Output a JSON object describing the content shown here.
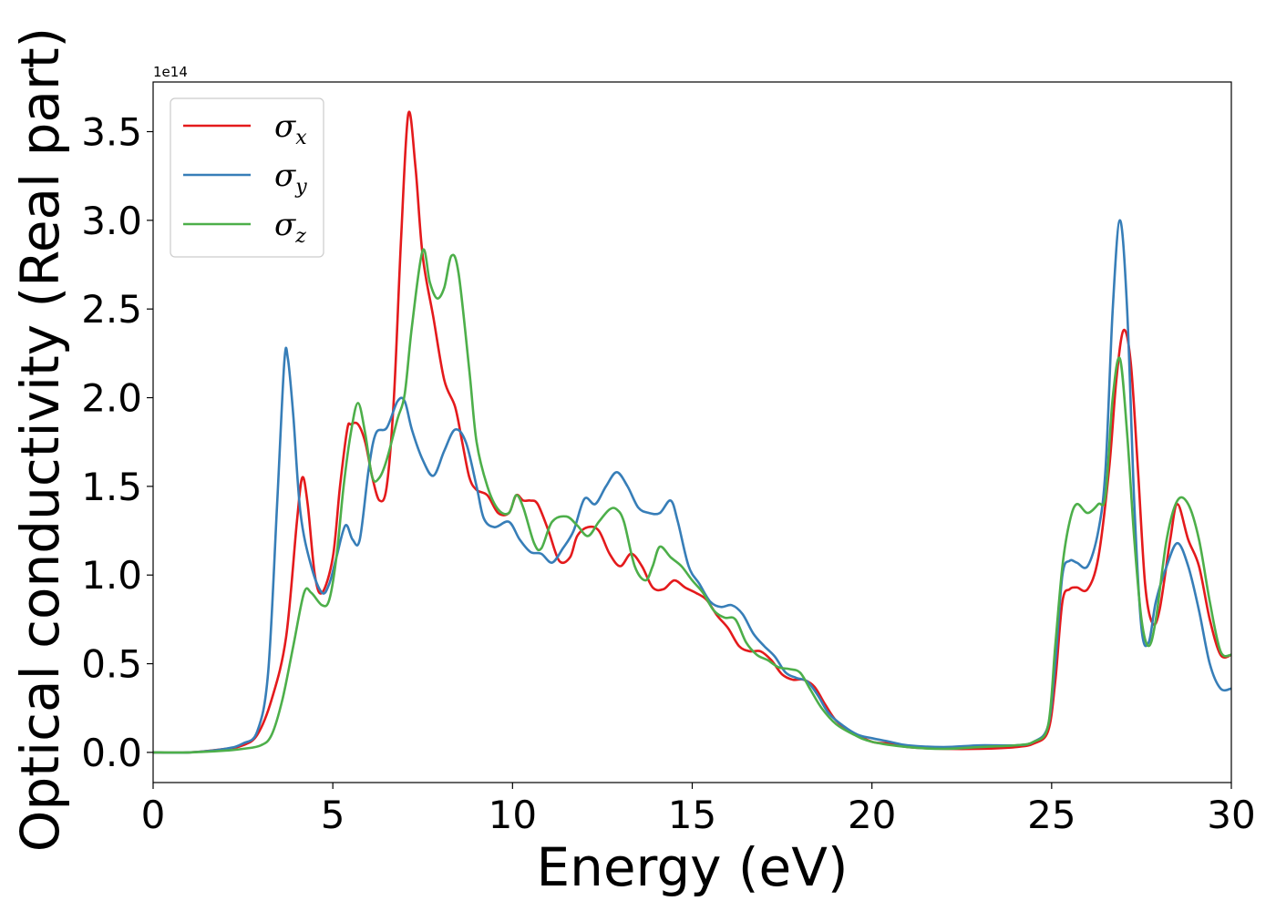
{
  "chart_data": {
    "type": "line",
    "xlabel": "Energy (eV)",
    "ylabel": "Optical conductivity (Real part)",
    "y_offset_label": "1e14",
    "xlim": [
      0,
      30
    ],
    "ylim": [
      -0.17,
      3.78
    ],
    "xticks": [
      0,
      5,
      10,
      15,
      20,
      25,
      30
    ],
    "xtick_labels": [
      "0",
      "5",
      "10",
      "15",
      "20",
      "25",
      "30"
    ],
    "yticks": [
      0.0,
      0.5,
      1.0,
      1.5,
      2.0,
      2.5,
      3.0,
      3.5
    ],
    "ytick_labels": [
      "0.0",
      "0.5",
      "1.0",
      "1.5",
      "2.0",
      "2.5",
      "3.0",
      "3.5"
    ],
    "grid": false,
    "legend_position": "top-left",
    "series": [
      {
        "name": "σx",
        "symbol": "σ",
        "subscript": "x",
        "color": "#e41a1c",
        "points": [
          [
            0,
            0
          ],
          [
            1,
            0
          ],
          [
            2,
            0.02
          ],
          [
            2.5,
            0.04
          ],
          [
            2.9,
            0.1
          ],
          [
            3.3,
            0.3
          ],
          [
            3.7,
            0.65
          ],
          [
            4.0,
            1.3
          ],
          [
            4.15,
            1.55
          ],
          [
            4.3,
            1.4
          ],
          [
            4.5,
            1.0
          ],
          [
            4.7,
            0.9
          ],
          [
            5.0,
            1.1
          ],
          [
            5.2,
            1.5
          ],
          [
            5.4,
            1.82
          ],
          [
            5.5,
            1.85
          ],
          [
            5.7,
            1.85
          ],
          [
            5.9,
            1.75
          ],
          [
            6.1,
            1.55
          ],
          [
            6.3,
            1.42
          ],
          [
            6.5,
            1.5
          ],
          [
            6.7,
            2.0
          ],
          [
            6.9,
            2.9
          ],
          [
            7.1,
            3.6
          ],
          [
            7.3,
            3.3
          ],
          [
            7.5,
            2.8
          ],
          [
            7.8,
            2.45
          ],
          [
            8.1,
            2.1
          ],
          [
            8.4,
            1.95
          ],
          [
            8.6,
            1.75
          ],
          [
            8.8,
            1.55
          ],
          [
            9.0,
            1.48
          ],
          [
            9.3,
            1.45
          ],
          [
            9.6,
            1.35
          ],
          [
            9.9,
            1.35
          ],
          [
            10.1,
            1.45
          ],
          [
            10.3,
            1.42
          ],
          [
            10.5,
            1.42
          ],
          [
            10.7,
            1.4
          ],
          [
            11.0,
            1.25
          ],
          [
            11.3,
            1.08
          ],
          [
            11.6,
            1.1
          ],
          [
            11.8,
            1.22
          ],
          [
            12.1,
            1.27
          ],
          [
            12.4,
            1.25
          ],
          [
            12.7,
            1.12
          ],
          [
            13.0,
            1.05
          ],
          [
            13.3,
            1.12
          ],
          [
            13.6,
            1.05
          ],
          [
            13.9,
            0.93
          ],
          [
            14.2,
            0.92
          ],
          [
            14.5,
            0.97
          ],
          [
            14.8,
            0.93
          ],
          [
            15.1,
            0.9
          ],
          [
            15.4,
            0.86
          ],
          [
            15.7,
            0.77
          ],
          [
            16.0,
            0.7
          ],
          [
            16.3,
            0.6
          ],
          [
            16.6,
            0.57
          ],
          [
            16.9,
            0.57
          ],
          [
            17.2,
            0.52
          ],
          [
            17.5,
            0.44
          ],
          [
            17.8,
            0.41
          ],
          [
            18.1,
            0.41
          ],
          [
            18.4,
            0.37
          ],
          [
            18.7,
            0.27
          ],
          [
            19.0,
            0.18
          ],
          [
            19.4,
            0.12
          ],
          [
            20.0,
            0.06
          ],
          [
            20.5,
            0.05
          ],
          [
            21.0,
            0.03
          ],
          [
            22.0,
            0.02
          ],
          [
            23.0,
            0.02
          ],
          [
            24.0,
            0.03
          ],
          [
            24.5,
            0.05
          ],
          [
            24.9,
            0.12
          ],
          [
            25.1,
            0.4
          ],
          [
            25.3,
            0.85
          ],
          [
            25.5,
            0.92
          ],
          [
            25.7,
            0.93
          ],
          [
            26.0,
            0.92
          ],
          [
            26.3,
            1.1
          ],
          [
            26.6,
            1.6
          ],
          [
            26.8,
            2.1
          ],
          [
            27.0,
            2.38
          ],
          [
            27.2,
            2.2
          ],
          [
            27.4,
            1.6
          ],
          [
            27.6,
            0.95
          ],
          [
            27.8,
            0.73
          ],
          [
            28.0,
            0.8
          ],
          [
            28.3,
            1.2
          ],
          [
            28.5,
            1.4
          ],
          [
            28.8,
            1.2
          ],
          [
            29.1,
            1.05
          ],
          [
            29.4,
            0.75
          ],
          [
            29.7,
            0.55
          ],
          [
            30.0,
            0.55
          ]
        ]
      },
      {
        "name": "σy",
        "symbol": "σ",
        "subscript": "y",
        "color": "#377eb8",
        "points": [
          [
            0,
            0
          ],
          [
            1,
            0
          ],
          [
            2,
            0.02
          ],
          [
            2.5,
            0.05
          ],
          [
            2.9,
            0.12
          ],
          [
            3.2,
            0.45
          ],
          [
            3.45,
            1.4
          ],
          [
            3.65,
            2.2
          ],
          [
            3.75,
            2.22
          ],
          [
            3.9,
            1.9
          ],
          [
            4.1,
            1.35
          ],
          [
            4.4,
            1.05
          ],
          [
            4.7,
            0.9
          ],
          [
            4.9,
            0.95
          ],
          [
            5.1,
            1.1
          ],
          [
            5.35,
            1.28
          ],
          [
            5.55,
            1.2
          ],
          [
            5.75,
            1.2
          ],
          [
            6.0,
            1.6
          ],
          [
            6.2,
            1.8
          ],
          [
            6.5,
            1.83
          ],
          [
            6.8,
            1.98
          ],
          [
            7.0,
            1.98
          ],
          [
            7.2,
            1.82
          ],
          [
            7.5,
            1.65
          ],
          [
            7.8,
            1.56
          ],
          [
            8.1,
            1.7
          ],
          [
            8.4,
            1.82
          ],
          [
            8.7,
            1.75
          ],
          [
            9.0,
            1.5
          ],
          [
            9.2,
            1.32
          ],
          [
            9.5,
            1.27
          ],
          [
            9.9,
            1.3
          ],
          [
            10.2,
            1.2
          ],
          [
            10.5,
            1.13
          ],
          [
            10.8,
            1.12
          ],
          [
            11.1,
            1.07
          ],
          [
            11.4,
            1.15
          ],
          [
            11.7,
            1.25
          ],
          [
            12.0,
            1.43
          ],
          [
            12.3,
            1.4
          ],
          [
            12.6,
            1.5
          ],
          [
            12.9,
            1.58
          ],
          [
            13.2,
            1.5
          ],
          [
            13.5,
            1.38
          ],
          [
            13.8,
            1.35
          ],
          [
            14.1,
            1.35
          ],
          [
            14.4,
            1.42
          ],
          [
            14.6,
            1.3
          ],
          [
            14.9,
            1.05
          ],
          [
            15.2,
            0.95
          ],
          [
            15.5,
            0.85
          ],
          [
            15.8,
            0.82
          ],
          [
            16.1,
            0.83
          ],
          [
            16.4,
            0.78
          ],
          [
            16.7,
            0.67
          ],
          [
            17.0,
            0.6
          ],
          [
            17.3,
            0.54
          ],
          [
            17.6,
            0.45
          ],
          [
            17.9,
            0.42
          ],
          [
            18.2,
            0.4
          ],
          [
            18.5,
            0.32
          ],
          [
            18.8,
            0.22
          ],
          [
            19.2,
            0.15
          ],
          [
            19.6,
            0.1
          ],
          [
            20.0,
            0.08
          ],
          [
            20.5,
            0.06
          ],
          [
            21.0,
            0.04
          ],
          [
            22.0,
            0.03
          ],
          [
            23.0,
            0.04
          ],
          [
            24.0,
            0.04
          ],
          [
            24.5,
            0.06
          ],
          [
            24.9,
            0.15
          ],
          [
            25.1,
            0.5
          ],
          [
            25.3,
            1.0
          ],
          [
            25.5,
            1.08
          ],
          [
            25.7,
            1.07
          ],
          [
            26.0,
            1.05
          ],
          [
            26.3,
            1.25
          ],
          [
            26.5,
            1.6
          ],
          [
            26.7,
            2.5
          ],
          [
            26.9,
            3.0
          ],
          [
            27.1,
            2.5
          ],
          [
            27.3,
            1.4
          ],
          [
            27.5,
            0.7
          ],
          [
            27.7,
            0.62
          ],
          [
            27.9,
            0.85
          ],
          [
            28.2,
            1.05
          ],
          [
            28.5,
            1.18
          ],
          [
            28.8,
            1.05
          ],
          [
            29.1,
            0.8
          ],
          [
            29.4,
            0.5
          ],
          [
            29.7,
            0.36
          ],
          [
            30.0,
            0.36
          ]
        ]
      },
      {
        "name": "σz",
        "symbol": "σ",
        "subscript": "z",
        "color": "#4daf4a",
        "points": [
          [
            0,
            0
          ],
          [
            1,
            0
          ],
          [
            2,
            0.01
          ],
          [
            2.5,
            0.02
          ],
          [
            3.0,
            0.04
          ],
          [
            3.3,
            0.1
          ],
          [
            3.6,
            0.3
          ],
          [
            3.9,
            0.6
          ],
          [
            4.2,
            0.9
          ],
          [
            4.4,
            0.9
          ],
          [
            4.7,
            0.83
          ],
          [
            4.9,
            0.86
          ],
          [
            5.1,
            1.1
          ],
          [
            5.3,
            1.5
          ],
          [
            5.5,
            1.8
          ],
          [
            5.7,
            1.97
          ],
          [
            5.9,
            1.8
          ],
          [
            6.1,
            1.55
          ],
          [
            6.3,
            1.55
          ],
          [
            6.5,
            1.65
          ],
          [
            6.8,
            1.88
          ],
          [
            7.0,
            2.02
          ],
          [
            7.2,
            2.4
          ],
          [
            7.5,
            2.83
          ],
          [
            7.7,
            2.65
          ],
          [
            7.9,
            2.56
          ],
          [
            8.1,
            2.62
          ],
          [
            8.3,
            2.8
          ],
          [
            8.5,
            2.7
          ],
          [
            8.8,
            2.15
          ],
          [
            9.0,
            1.75
          ],
          [
            9.3,
            1.5
          ],
          [
            9.6,
            1.37
          ],
          [
            9.9,
            1.35
          ],
          [
            10.1,
            1.45
          ],
          [
            10.3,
            1.38
          ],
          [
            10.6,
            1.18
          ],
          [
            10.8,
            1.15
          ],
          [
            11.1,
            1.3
          ],
          [
            11.5,
            1.33
          ],
          [
            11.8,
            1.28
          ],
          [
            12.1,
            1.22
          ],
          [
            12.4,
            1.3
          ],
          [
            12.7,
            1.37
          ],
          [
            12.9,
            1.37
          ],
          [
            13.1,
            1.3
          ],
          [
            13.4,
            1.05
          ],
          [
            13.7,
            0.97
          ],
          [
            13.9,
            1.05
          ],
          [
            14.1,
            1.16
          ],
          [
            14.4,
            1.1
          ],
          [
            14.7,
            1.05
          ],
          [
            15.0,
            0.97
          ],
          [
            15.3,
            0.9
          ],
          [
            15.6,
            0.8
          ],
          [
            15.9,
            0.76
          ],
          [
            16.2,
            0.75
          ],
          [
            16.5,
            0.62
          ],
          [
            16.8,
            0.55
          ],
          [
            17.1,
            0.52
          ],
          [
            17.4,
            0.48
          ],
          [
            17.7,
            0.47
          ],
          [
            18.0,
            0.45
          ],
          [
            18.3,
            0.35
          ],
          [
            18.6,
            0.25
          ],
          [
            19.0,
            0.16
          ],
          [
            19.5,
            0.1
          ],
          [
            20.0,
            0.06
          ],
          [
            21.0,
            0.03
          ],
          [
            22.0,
            0.02
          ],
          [
            23.0,
            0.03
          ],
          [
            24.0,
            0.04
          ],
          [
            24.5,
            0.06
          ],
          [
            24.9,
            0.15
          ],
          [
            25.1,
            0.6
          ],
          [
            25.3,
            1.05
          ],
          [
            25.5,
            1.3
          ],
          [
            25.7,
            1.4
          ],
          [
            26.0,
            1.35
          ],
          [
            26.3,
            1.4
          ],
          [
            26.5,
            1.45
          ],
          [
            26.7,
            2.0
          ],
          [
            26.9,
            2.22
          ],
          [
            27.1,
            1.8
          ],
          [
            27.3,
            1.2
          ],
          [
            27.5,
            0.75
          ],
          [
            27.7,
            0.6
          ],
          [
            27.9,
            0.75
          ],
          [
            28.2,
            1.2
          ],
          [
            28.5,
            1.42
          ],
          [
            28.8,
            1.4
          ],
          [
            29.1,
            1.2
          ],
          [
            29.4,
            0.85
          ],
          [
            29.7,
            0.57
          ],
          [
            30.0,
            0.55
          ]
        ]
      }
    ]
  }
}
